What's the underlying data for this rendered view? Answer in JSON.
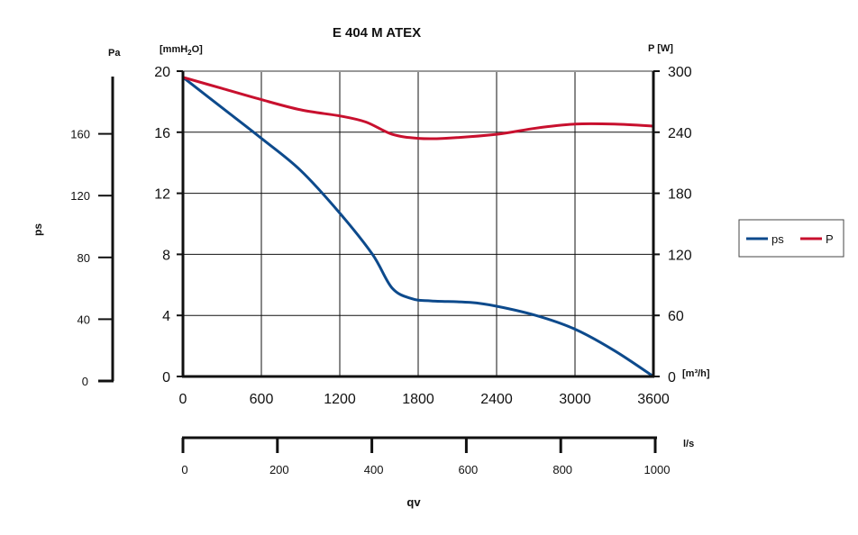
{
  "chart_data": {
    "type": "line",
    "title": "E 404 M ATEX",
    "left_unit_mm": "[mmH",
    "left_unit_sub": "2",
    "left_unit_end": "O]",
    "right_unit": "P [W]",
    "pa_unit": "Pa",
    "pa_label": "ps",
    "flow_unit_m3h": "[m³/h]",
    "flow_unit_ls": "l/s",
    "xlabel": "qv",
    "x_ticks": [
      0,
      600,
      1200,
      1800,
      2400,
      3000,
      3600
    ],
    "xlim": [
      0,
      3600
    ],
    "y_mm_ticks": [
      0,
      4,
      8,
      12,
      16,
      20
    ],
    "ylim_mm": [
      0,
      20
    ],
    "y_w_ticks": [
      0,
      60,
      120,
      180,
      240,
      300
    ],
    "ylim_w": [
      0,
      300
    ],
    "pa_ticks": [
      0,
      40,
      80,
      120,
      160
    ],
    "ls_ticks": [
      0,
      200,
      400,
      600,
      800,
      1000
    ],
    "legend_position": "right",
    "series": [
      {
        "name": "ps",
        "color": "#0d4a8c",
        "axis": "mmH2O",
        "points": [
          [
            0,
            19.6
          ],
          [
            300,
            17.6
          ],
          [
            600,
            15.6
          ],
          [
            900,
            13.5
          ],
          [
            1200,
            10.7
          ],
          [
            1450,
            8.0
          ],
          [
            1600,
            5.8
          ],
          [
            1750,
            5.1
          ],
          [
            1900,
            4.95
          ],
          [
            2200,
            4.85
          ],
          [
            2400,
            4.6
          ],
          [
            2700,
            4.0
          ],
          [
            3000,
            3.1
          ],
          [
            3300,
            1.7
          ],
          [
            3600,
            0
          ]
        ]
      },
      {
        "name": "P",
        "color": "#c8102e",
        "axis": "W",
        "points": [
          [
            0,
            294
          ],
          [
            300,
            283
          ],
          [
            600,
            272
          ],
          [
            900,
            262
          ],
          [
            1200,
            256
          ],
          [
            1400,
            250
          ],
          [
            1600,
            238
          ],
          [
            1800,
            234
          ],
          [
            2000,
            234
          ],
          [
            2400,
            238
          ],
          [
            2700,
            244
          ],
          [
            3000,
            248
          ],
          [
            3300,
            248
          ],
          [
            3600,
            246
          ]
        ]
      }
    ]
  }
}
